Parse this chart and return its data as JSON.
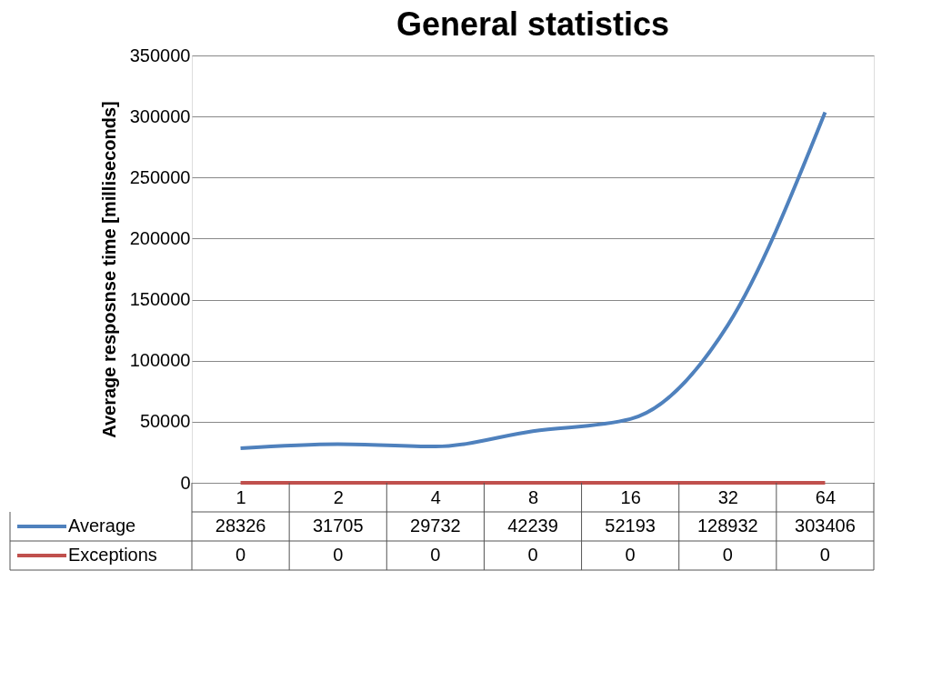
{
  "chart_data": {
    "type": "line",
    "title": "General statistics",
    "ylabel": "Average resposnse time [milliseconds]",
    "categories": [
      "1",
      "2",
      "4",
      "8",
      "16",
      "32",
      "64"
    ],
    "series": [
      {
        "name": "Average",
        "color": "#4f81bd",
        "values": [
          28326,
          31705,
          29732,
          42239,
          52193,
          128932,
          303406
        ]
      },
      {
        "name": "Exceptions",
        "color": "#c0504d",
        "values": [
          0,
          0,
          0,
          0,
          0,
          0,
          0
        ]
      }
    ],
    "ylim": [
      0,
      350000
    ],
    "yticks": [
      0,
      50000,
      100000,
      150000,
      200000,
      250000,
      300000,
      350000
    ],
    "grid": "y",
    "legend": "bottom",
    "data_labels": true
  }
}
